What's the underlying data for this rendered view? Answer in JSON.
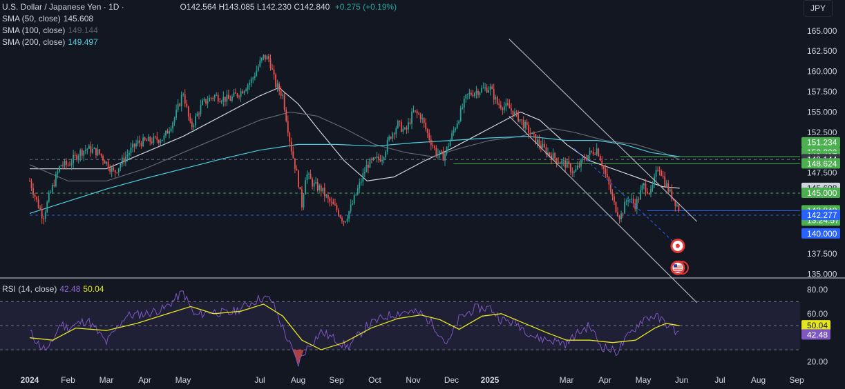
{
  "header": {
    "title": "U.S. Dollar / Japanese Yen · 1D ·",
    "open": "O142.564",
    "high": "H143.085",
    "low": "L142.230",
    "close": "C142.840",
    "change": "+0.275 (+0.19%)",
    "sma50_label": "SMA (50, close)",
    "sma50_value": "145.608",
    "sma100_label": "SMA (100, close)",
    "sma100_value": "149.144",
    "sma200_label": "SMA (200, close)",
    "sma200_value": "149.497",
    "currency_button": "JPY"
  },
  "rsi_header": {
    "label": "RSI (14, close)",
    "rsi_value": "42.48",
    "ma_value": "50.04"
  },
  "colors": {
    "up": "#26a69a",
    "down": "#ef5350",
    "sma50": "#d1d4dc",
    "sma100": "#787b86",
    "sma200": "#4dd0e1",
    "rsi": "#7e57c2",
    "rsi_ma": "#e6e61e",
    "level_line": "#4caf50",
    "current_line": "#2962ff"
  },
  "chart_data": [
    {
      "type": "candlestick",
      "title": "U.S. Dollar / Japanese Yen · 1D",
      "y_axis_ticks": [
        "165.000",
        "162.500",
        "160.000",
        "157.500",
        "155.000",
        "152.500",
        "150.000",
        "147.500",
        "145.000",
        "142.500",
        "140.000",
        "137.500",
        "135.000"
      ],
      "ylim": [
        134.8,
        166.0
      ],
      "x_axis_ticks": [
        "2024",
        "Feb",
        "Mar",
        "Apr",
        "May",
        "Jun",
        "Jul",
        "Aug",
        "Sep",
        "Oct",
        "Nov",
        "Dec",
        "2025",
        "Jan",
        "Feb",
        "Mar",
        "Apr",
        "May",
        "Jun",
        "Jul",
        "Aug",
        "Sep"
      ],
      "x_axis_labels": [
        {
          "label": "2024",
          "month": 0
        },
        {
          "label": "Feb",
          "month": 1
        },
        {
          "label": "Mar",
          "month": 2
        },
        {
          "label": "Apr",
          "month": 3
        },
        {
          "label": "May",
          "month": 4
        },
        {
          "label": "Jul",
          "month": 6
        },
        {
          "label": "Aug",
          "month": 7
        },
        {
          "label": "Sep",
          "month": 8
        },
        {
          "label": "Oct",
          "month": 9
        },
        {
          "label": "Nov",
          "month": 10
        },
        {
          "label": "Dec",
          "month": 11
        },
        {
          "label": "2025",
          "month": 12
        },
        {
          "label": "Mar",
          "month": 14
        },
        {
          "label": "Apr",
          "month": 15
        },
        {
          "label": "May",
          "month": 16
        },
        {
          "label": "Jun",
          "month": 17
        },
        {
          "label": "Jul",
          "month": 18
        },
        {
          "label": "Aug",
          "month": 19
        },
        {
          "label": "Sep",
          "month": 20
        }
      ],
      "price_path": [
        [
          0,
          146.5
        ],
        [
          0.2,
          143.8
        ],
        [
          0.35,
          142.0
        ],
        [
          0.5,
          144.5
        ],
        [
          0.8,
          148.5
        ],
        [
          1.0,
          148.5
        ],
        [
          1.3,
          150.0
        ],
        [
          1.5,
          150.5
        ],
        [
          1.8,
          150.0
        ],
        [
          2.2,
          147.5
        ],
        [
          2.5,
          149.5
        ],
        [
          2.8,
          151.2
        ],
        [
          3.2,
          151.5
        ],
        [
          3.5,
          151.8
        ],
        [
          3.8,
          154.5
        ],
        [
          4.0,
          157.5
        ],
        [
          4.2,
          153.0
        ],
        [
          4.5,
          156.0
        ],
        [
          4.8,
          157.0
        ],
        [
          5.2,
          156.5
        ],
        [
          5.5,
          157.5
        ],
        [
          5.8,
          159.0
        ],
        [
          6.0,
          161.0
        ],
        [
          6.1,
          161.8
        ],
        [
          6.25,
          161.5
        ],
        [
          6.4,
          158.5
        ],
        [
          6.6,
          157.0
        ],
        [
          6.8,
          151.0
        ],
        [
          7.0,
          146.5
        ],
        [
          7.1,
          143.5
        ],
        [
          7.2,
          147.5
        ],
        [
          7.4,
          146.0
        ],
        [
          7.6,
          145.5
        ],
        [
          7.8,
          144.0
        ],
        [
          8.0,
          143.0
        ],
        [
          8.2,
          141.5
        ],
        [
          8.4,
          143.5
        ],
        [
          8.6,
          146.0
        ],
        [
          8.8,
          148.5
        ],
        [
          9.2,
          149.5
        ],
        [
          9.4,
          152.0
        ],
        [
          9.6,
          153.5
        ],
        [
          9.8,
          152.5
        ],
        [
          10.0,
          155.0
        ],
        [
          10.2,
          154.5
        ],
        [
          10.4,
          152.0
        ],
        [
          10.6,
          150.0
        ],
        [
          10.8,
          149.5
        ],
        [
          11.0,
          152.0
        ],
        [
          11.2,
          154.5
        ],
        [
          11.4,
          157.0
        ],
        [
          11.6,
          157.5
        ],
        [
          11.8,
          157.8
        ],
        [
          12.0,
          158.0
        ],
        [
          12.2,
          156.0
        ],
        [
          12.5,
          155.5
        ],
        [
          12.8,
          154.0
        ],
        [
          13.2,
          151.5
        ],
        [
          13.5,
          150.0
        ],
        [
          13.8,
          149.0
        ],
        [
          14.0,
          148.5
        ],
        [
          14.2,
          147.5
        ],
        [
          14.5,
          149.5
        ],
        [
          14.8,
          150.5
        ],
        [
          15.0,
          147.5
        ],
        [
          15.1,
          146.0
        ],
        [
          15.25,
          143.5
        ],
        [
          15.4,
          142.0
        ],
        [
          15.6,
          144.5
        ],
        [
          15.8,
          143.5
        ],
        [
          16.0,
          146.0
        ],
        [
          16.2,
          145.0
        ],
        [
          16.4,
          148.5
        ],
        [
          16.55,
          146.5
        ],
        [
          16.7,
          145.0
        ],
        [
          16.85,
          143.8
        ],
        [
          16.95,
          142.84
        ]
      ],
      "series": [
        {
          "name": "SMA (50, close)",
          "color": "#d1d4dc",
          "points": [
            [
              0,
              148.0
            ],
            [
              1.0,
              148.0
            ],
            [
              2.0,
              148.0
            ],
            [
              3.0,
              150.0
            ],
            [
              4.0,
              152.0
            ],
            [
              5.0,
              154.5
            ],
            [
              6.0,
              157.0
            ],
            [
              6.5,
              158.0
            ],
            [
              7.0,
              156.0
            ],
            [
              7.5,
              153.0
            ],
            [
              8.2,
              149.0
            ],
            [
              8.8,
              146.5
            ],
            [
              9.5,
              147.0
            ],
            [
              10.3,
              149.0
            ],
            [
              11.0,
              150.5
            ],
            [
              11.6,
              152.0
            ],
            [
              12.2,
              153.5
            ],
            [
              12.8,
              155.0
            ],
            [
              13.3,
              154.0
            ],
            [
              14.0,
              151.0
            ],
            [
              14.6,
              149.0
            ],
            [
              15.2,
              148.0
            ],
            [
              15.8,
              147.0
            ],
            [
              16.5,
              145.8
            ],
            [
              16.95,
              145.608
            ]
          ]
        },
        {
          "name": "SMA (100, close)",
          "color": "#787b86",
          "points": [
            [
              0,
              148.5
            ],
            [
              1.0,
              146.5
            ],
            [
              2.0,
              146.5
            ],
            [
              3.0,
              148.0
            ],
            [
              4.0,
              150.0
            ],
            [
              5.0,
              152.0
            ],
            [
              6.0,
              154.0
            ],
            [
              6.8,
              155.0
            ],
            [
              7.5,
              154.5
            ],
            [
              8.2,
              153.0
            ],
            [
              9.0,
              151.0
            ],
            [
              9.8,
              150.0
            ],
            [
              10.5,
              149.5
            ],
            [
              11.2,
              150.5
            ],
            [
              12.0,
              151.5
            ],
            [
              12.8,
              152.0
            ],
            [
              13.6,
              153.0
            ],
            [
              14.2,
              152.5
            ],
            [
              15.0,
              151.5
            ],
            [
              15.8,
              151.0
            ],
            [
              16.5,
              150.0
            ],
            [
              16.95,
              149.144
            ]
          ]
        },
        {
          "name": "SMA (200, close)",
          "color": "#4dd0e1",
          "points": [
            [
              0,
              142.5
            ],
            [
              1.0,
              144.0
            ],
            [
              2.0,
              145.5
            ],
            [
              3.0,
              146.8
            ],
            [
              4.0,
              148.0
            ],
            [
              5.0,
              149.2
            ],
            [
              6.0,
              150.3
            ],
            [
              7.0,
              151.0
            ],
            [
              8.0,
              151.0
            ],
            [
              9.0,
              150.8
            ],
            [
              10.0,
              151.2
            ],
            [
              11.0,
              151.5
            ],
            [
              12.0,
              151.8
            ],
            [
              13.0,
              152.0
            ],
            [
              14.0,
              151.5
            ],
            [
              14.8,
              151.5
            ],
            [
              15.5,
              151.0
            ],
            [
              16.2,
              150.0
            ],
            [
              16.95,
              149.497
            ]
          ]
        }
      ],
      "horizontal_levels": [
        {
          "label": "151.234",
          "value": 151.234,
          "style": "solid",
          "tag_color": "#4caf50",
          "start_month": 0,
          "visible_line": false
        },
        {
          "label": "150.000",
          "value": 150.0,
          "tag_color": "#4caf50",
          "visible_line": false
        },
        {
          "label": "149.497",
          "value": 149.497,
          "style": "solid",
          "tag_color": "#4caf50",
          "start_month": 15.4
        },
        {
          "label": "149.144",
          "value": 149.144,
          "style": "dashed",
          "tag_color": "#363a45",
          "start_month": 0
        },
        {
          "label": "148.624",
          "value": 148.624,
          "style": "solid",
          "tag_color": "#4caf50",
          "start_month": 11.05
        },
        {
          "label": "145.608",
          "value": 145.608,
          "tag_color": "#d1d4dc",
          "text_color": "#131722",
          "visible_line": false
        },
        {
          "label": "145.000",
          "value": 145.0,
          "style": "dashed",
          "tag_color": "#4caf50",
          "start_month": 0
        },
        {
          "label": "142.840",
          "value": 142.84,
          "style": "solid",
          "tag_color": "#4caf50",
          "start_month": 16.1,
          "line_color": "#2962ff",
          "countdown": "13:24:57"
        },
        {
          "label": "142.277",
          "value": 142.277,
          "style": "dashed",
          "tag_color": "#2962ff",
          "start_month": 0
        },
        {
          "label": "140.000",
          "value": 140.0,
          "tag_color": "#2962ff",
          "visible_line": false
        }
      ],
      "trend_channel": [
        {
          "from": [
            12.5,
            164.0
          ],
          "to": [
            17.4,
            141.5
          ]
        },
        {
          "from": [
            12.5,
            154.5
          ],
          "to": [
            17.4,
            131.5
          ]
        }
      ],
      "event_markers": [
        {
          "month": 16.9,
          "value": 138.5,
          "icon": "record-icon"
        },
        {
          "month": 16.9,
          "value": 135.8,
          "icon": "us-flag-icon"
        }
      ]
    },
    {
      "type": "line",
      "title": "RSI (14, close)",
      "y_axis_ticks": [
        "80.00",
        "60.00",
        "20.00"
      ],
      "ylim": [
        14,
        84
      ],
      "bands": [
        30,
        50,
        70
      ],
      "series": [
        {
          "name": "RSI (14, close)",
          "color": "#7e57c2",
          "points": [
            [
              0,
              45
            ],
            [
              0.3,
              32
            ],
            [
              0.5,
              30
            ],
            [
              0.8,
              52
            ],
            [
              1.0,
              48
            ],
            [
              1.5,
              55
            ],
            [
              2.0,
              36
            ],
            [
              2.5,
              58
            ],
            [
              3.0,
              60
            ],
            [
              3.5,
              64
            ],
            [
              4.0,
              78
            ],
            [
              4.3,
              58
            ],
            [
              4.7,
              62
            ],
            [
              5.2,
              60
            ],
            [
              5.6,
              66
            ],
            [
              6.0,
              73
            ],
            [
              6.3,
              72
            ],
            [
              6.6,
              48
            ],
            [
              7.0,
              18
            ],
            [
              7.2,
              30
            ],
            [
              7.6,
              45
            ],
            [
              8.0,
              38
            ],
            [
              8.3,
              32
            ],
            [
              8.8,
              50
            ],
            [
              9.3,
              58
            ],
            [
              9.8,
              62
            ],
            [
              10.2,
              60
            ],
            [
              10.5,
              52
            ],
            [
              10.9,
              34
            ],
            [
              11.2,
              56
            ],
            [
              11.6,
              64
            ],
            [
              12.0,
              65
            ],
            [
              12.3,
              55
            ],
            [
              12.7,
              52
            ],
            [
              13.2,
              40
            ],
            [
              13.6,
              38
            ],
            [
              14.0,
              35
            ],
            [
              14.3,
              44
            ],
            [
              14.6,
              50
            ],
            [
              14.9,
              33
            ],
            [
              15.3,
              28
            ],
            [
              15.7,
              45
            ],
            [
              16.0,
              56
            ],
            [
              16.3,
              58
            ],
            [
              16.6,
              52
            ],
            [
              16.95,
              42.48
            ]
          ]
        },
        {
          "name": "RSI-based MA",
          "color": "#e6e61e",
          "points": [
            [
              0,
              40
            ],
            [
              0.6,
              38
            ],
            [
              1.2,
              48
            ],
            [
              2.0,
              46
            ],
            [
              2.8,
              52
            ],
            [
              3.6,
              60
            ],
            [
              4.2,
              66
            ],
            [
              4.8,
              60
            ],
            [
              5.5,
              62
            ],
            [
              6.1,
              68
            ],
            [
              6.6,
              58
            ],
            [
              7.1,
              38
            ],
            [
              7.6,
              30
            ],
            [
              8.2,
              36
            ],
            [
              8.9,
              48
            ],
            [
              9.6,
              56
            ],
            [
              10.2,
              59
            ],
            [
              10.7,
              55
            ],
            [
              11.2,
              47
            ],
            [
              11.8,
              58
            ],
            [
              12.3,
              60
            ],
            [
              12.9,
              52
            ],
            [
              13.5,
              44
            ],
            [
              14.0,
              38
            ],
            [
              14.6,
              38
            ],
            [
              15.2,
              36
            ],
            [
              15.8,
              38
            ],
            [
              16.3,
              48
            ],
            [
              16.6,
              52
            ],
            [
              16.95,
              50.04
            ]
          ]
        }
      ]
    }
  ]
}
